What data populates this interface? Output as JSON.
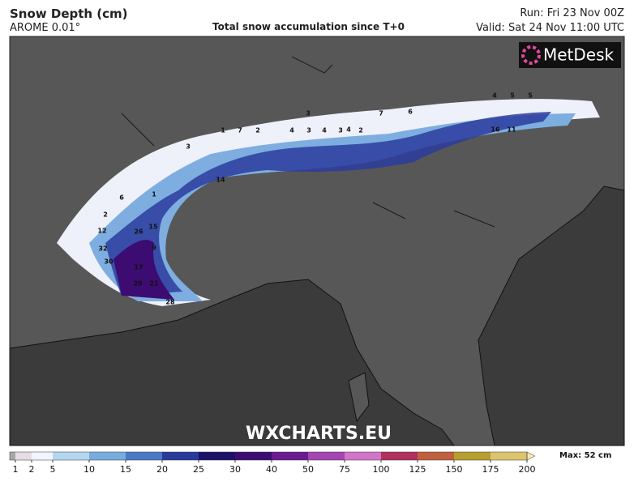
{
  "header": {
    "title": "Snow Depth (cm)",
    "model": "AROME 0.01°",
    "subtitle": "Total snow accumulation since T+0",
    "run": "Run: Fri 23 Nov 00Z",
    "valid": "Valid: Sat 24 Nov 11:00 UTC"
  },
  "logo": "MetDesk",
  "watermark": "WXCHARTS.EU",
  "map_labels": [
    1,
    7,
    2,
    4,
    3,
    4,
    3,
    2,
    5,
    4,
    6,
    7,
    4,
    3,
    5,
    16,
    11,
    12,
    32,
    30,
    26,
    17,
    20,
    21,
    28,
    1,
    3,
    2,
    6,
    14,
    9,
    15
  ],
  "legend": {
    "ticks": [
      1,
      2,
      5,
      10,
      15,
      20,
      25,
      30,
      40,
      50,
      75,
      100,
      125,
      150,
      175,
      200
    ],
    "below_color": "#a8a8a8",
    "colors": [
      "#e6dce6",
      "#f2f4ff",
      "#b4d6f0",
      "#78acde",
      "#4a7ac6",
      "#2a3a9c",
      "#1c1268",
      "#3c0c72",
      "#6c1a92",
      "#a446b2",
      "#d274c8",
      "#b0305e",
      "#c0603e",
      "#b89e2e",
      "#dcc46e"
    ],
    "above_color": "#f6e8b2",
    "max": "Max: 52 cm"
  }
}
